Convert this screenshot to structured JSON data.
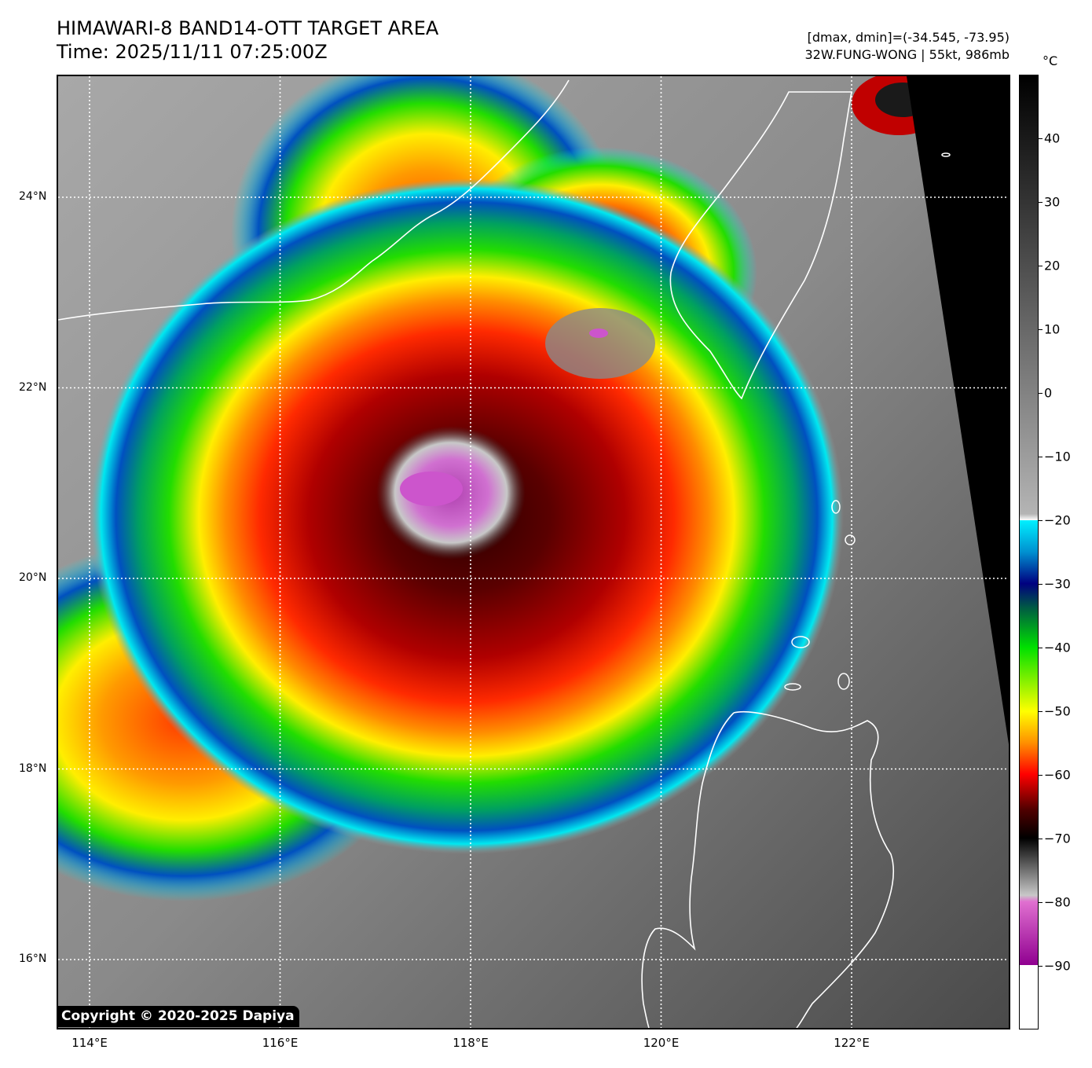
{
  "title": {
    "line1": "HIMAWARI-8 BAND14-OTT TARGET AREA",
    "line2": "Time: 2025/11/11 07:25:00Z"
  },
  "info": {
    "range": "[dmax, dmin]=(-34.545, -73.95)",
    "storm": "32W.FUNG-WONG | 55kt, 986mb"
  },
  "copyright": "Copyright © 2020-2025 Dapiya",
  "map": {
    "lat_labels": [
      "24°N",
      "22°N",
      "20°N",
      "18°N",
      "16°N"
    ],
    "lon_labels": [
      "114°E",
      "116°E",
      "118°E",
      "120°E",
      "122°E"
    ],
    "lat_values": [
      24,
      22,
      20,
      18,
      16
    ],
    "lon_values": [
      114,
      116,
      118,
      120,
      122
    ],
    "gridlines": "dotted",
    "storm_center": {
      "lat": 21.0,
      "lon": 117.5
    }
  },
  "colorbar": {
    "unit": "°C",
    "ticks": [
      "40",
      "30",
      "20",
      "10",
      "0",
      "−10",
      "−20",
      "−30",
      "−40",
      "−50",
      "−60",
      "−70",
      "−80",
      "−90"
    ],
    "tick_values": [
      40,
      30,
      20,
      10,
      0,
      -10,
      -20,
      -30,
      -40,
      -50,
      -60,
      -70,
      -80,
      -90
    ],
    "range": [
      -100,
      50
    ]
  },
  "colors": {
    "eye_magenta": "#cc55cc",
    "cold_red": "#d00000",
    "dark_red": "#6a0000",
    "orange": "#ff8a00",
    "yellow": "#ffee00",
    "green": "#22dd00",
    "cyan": "#00e8f0",
    "blue": "#0050c0",
    "coast": "#ffffff"
  }
}
